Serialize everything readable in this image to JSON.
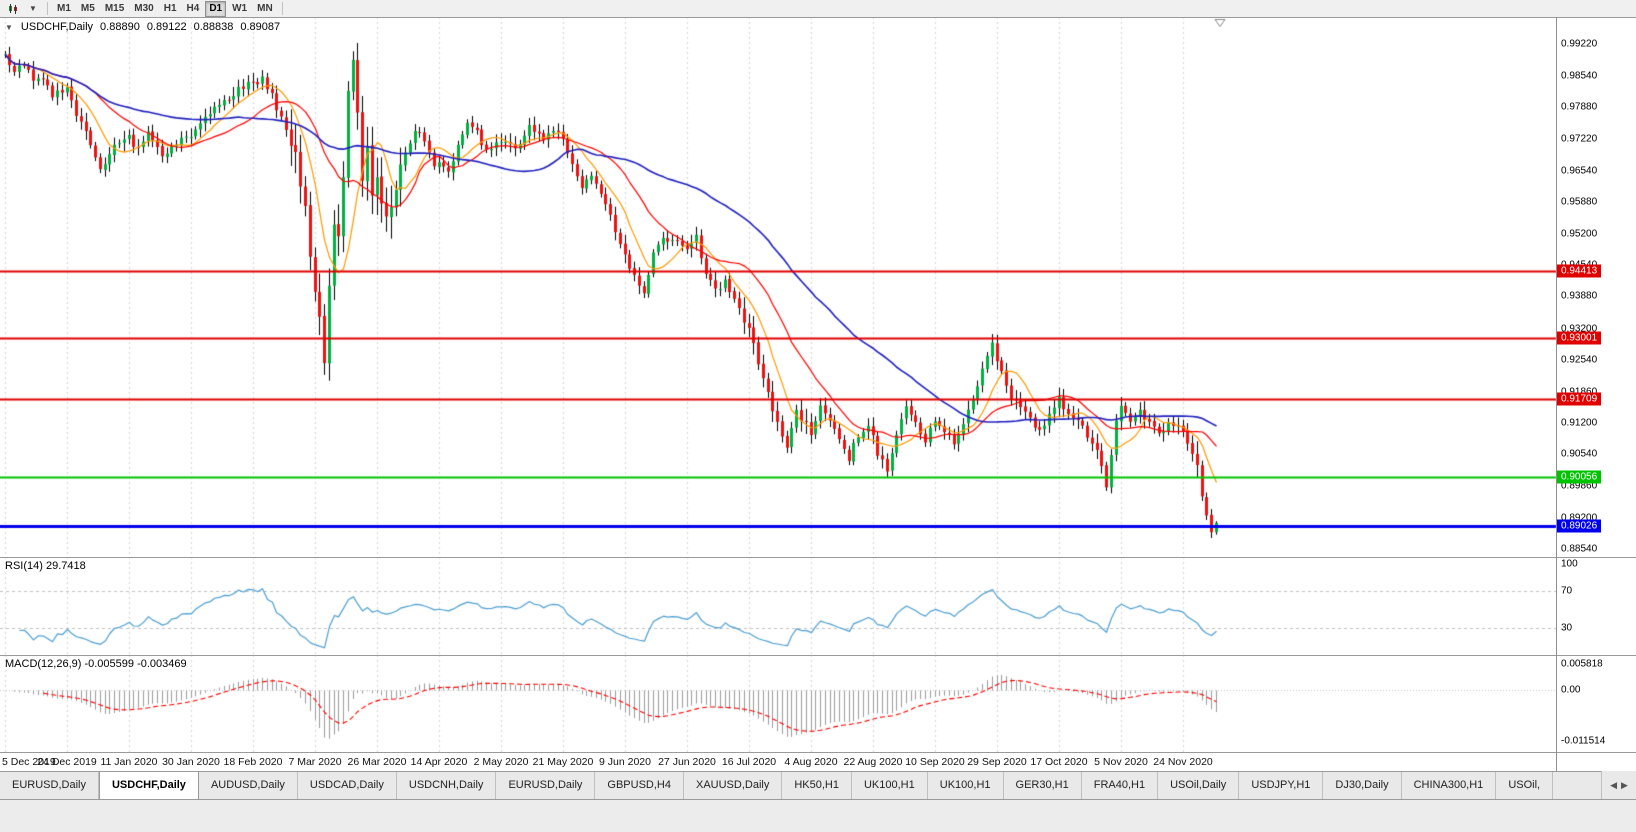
{
  "toolbar": {
    "timeframes": [
      "M1",
      "M5",
      "M15",
      "M30",
      "H1",
      "H4",
      "D1",
      "W1",
      "MN"
    ],
    "active_timeframe": "D1"
  },
  "chart": {
    "symbol_period": "USDCHF,Daily",
    "ohlc": {
      "open": "0.88890",
      "high": "0.89122",
      "low": "0.88838",
      "close": "0.89087"
    },
    "collapse_arrow": "▼"
  },
  "price_axis": {
    "ticks": [
      "0.99220",
      "0.98540",
      "0.97880",
      "0.97220",
      "0.96540",
      "0.95880",
      "0.95200",
      "0.94540",
      "0.93880",
      "0.93200",
      "0.92540",
      "0.91860",
      "0.91200",
      "0.90540",
      "0.89860",
      "0.89200",
      "0.88540"
    ]
  },
  "date_axis": {
    "labels": [
      "5 Dec 2019",
      "24 Dec 2019",
      "11 Jan 2020",
      "30 Jan 2020",
      "18 Feb 2020",
      "7 Mar 2020",
      "26 Mar 2020",
      "14 Apr 2020",
      "2 May 2020",
      "21 May 2020",
      "9 Jun 2020",
      "27 Jun 2020",
      "16 Jul 2020",
      "4 Aug 2020",
      "22 Aug 2020",
      "10 Sep 2020",
      "29 Sep 2020",
      "17 Oct 2020",
      "5 Nov 2020",
      "24 Nov 2020"
    ]
  },
  "indicators": {
    "rsi": {
      "label": "RSI(14) 29.7418",
      "axis_labels": [
        "100",
        "70",
        "30"
      ],
      "axis_values": [
        100,
        70,
        30
      ],
      "dashed_levels": [
        70,
        30
      ]
    },
    "macd": {
      "label": "MACD(12,26,9) -0.005599 -0.003469",
      "axis_labels": [
        "0.005818",
        "0.00",
        "-0.011514"
      ],
      "axis_values": [
        0.005818,
        0.0,
        -0.011514
      ]
    }
  },
  "tabs": {
    "items": [
      "EURUSD,Daily",
      "USDCHF,Daily",
      "AUDUSD,Daily",
      "USDCAD,Daily",
      "USDCNH,Daily",
      "EURUSD,Daily",
      "GBPUSD,H4",
      "XAUUSD,Daily",
      "HK50,H1",
      "UK100,H1",
      "UK100,H1",
      "GER30,H1",
      "FRA40,H1",
      "USOil,Daily",
      "USDJPY,H1",
      "DJ30,Daily",
      "CHINA300,H1",
      "USOil,"
    ],
    "active_index": 1,
    "scroll_left": "◀",
    "scroll_right": "▶"
  },
  "chart_data": {
    "type": "candlestick",
    "symbol": "USDCHF",
    "timeframe": "Daily",
    "num_candles": 255,
    "last_candle": {
      "open": 0.8889,
      "high": 0.89122,
      "low": 0.88838,
      "close": 0.89087
    },
    "y_axis_range": [
      0.88365,
      0.99795
    ],
    "close_anchors": [
      [
        0,
        0.99
      ],
      [
        2,
        0.9858
      ],
      [
        4,
        0.9878
      ],
      [
        6,
        0.985
      ],
      [
        8,
        0.9842
      ],
      [
        10,
        0.9812
      ],
      [
        13,
        0.9826
      ],
      [
        15,
        0.9778
      ],
      [
        17,
        0.9742
      ],
      [
        20,
        0.9663
      ],
      [
        22,
        0.969
      ],
      [
        24,
        0.9714
      ],
      [
        26,
        0.9722
      ],
      [
        28,
        0.97
      ],
      [
        30,
        0.9734
      ],
      [
        33,
        0.9682
      ],
      [
        36,
        0.9712
      ],
      [
        39,
        0.9731
      ],
      [
        42,
        0.9762
      ],
      [
        45,
        0.979
      ],
      [
        48,
        0.9818
      ],
      [
        51,
        0.984
      ],
      [
        54,
        0.9849
      ],
      [
        56,
        0.9812
      ],
      [
        58,
        0.9768
      ],
      [
        60,
        0.9722
      ],
      [
        62,
        0.9642
      ],
      [
        64,
        0.948
      ],
      [
        66,
        0.9332
      ],
      [
        67,
        0.9262
      ],
      [
        68,
        0.9422
      ],
      [
        69,
        0.956
      ],
      [
        70,
        0.9502
      ],
      [
        71,
        0.9642
      ],
      [
        72,
        0.9822
      ],
      [
        73,
        0.9898
      ],
      [
        74,
        0.9778
      ],
      [
        75,
        0.9652
      ],
      [
        76,
        0.9722
      ],
      [
        77,
        0.9592
      ],
      [
        78,
        0.964
      ],
      [
        80,
        0.9556
      ],
      [
        82,
        0.9612
      ],
      [
        84,
        0.969
      ],
      [
        86,
        0.9744
      ],
      [
        88,
        0.9722
      ],
      [
        90,
        0.9672
      ],
      [
        93,
        0.9646
      ],
      [
        95,
        0.9702
      ],
      [
        97,
        0.9756
      ],
      [
        99,
        0.9732
      ],
      [
        101,
        0.9698
      ],
      [
        104,
        0.9722
      ],
      [
        107,
        0.97
      ],
      [
        110,
        0.9748
      ],
      [
        113,
        0.9718
      ],
      [
        116,
        0.9738
      ],
      [
        119,
        0.9676
      ],
      [
        121,
        0.9618
      ],
      [
        123,
        0.9648
      ],
      [
        125,
        0.9598
      ],
      [
        127,
        0.9558
      ],
      [
        130,
        0.948
      ],
      [
        132,
        0.9426
      ],
      [
        134,
        0.9386
      ],
      [
        136,
        0.9476
      ],
      [
        138,
        0.952
      ],
      [
        141,
        0.9498
      ],
      [
        143,
        0.9482
      ],
      [
        145,
        0.9512
      ],
      [
        147,
        0.9442
      ],
      [
        149,
        0.9398
      ],
      [
        151,
        0.942
      ],
      [
        153,
        0.9378
      ],
      [
        156,
        0.9318
      ],
      [
        158,
        0.9248
      ],
      [
        160,
        0.9178
      ],
      [
        162,
        0.9128
      ],
      [
        164,
        0.9076
      ],
      [
        166,
        0.9148
      ],
      [
        168,
        0.9118
      ],
      [
        169,
        0.9098
      ],
      [
        171,
        0.9158
      ],
      [
        173,
        0.9128
      ],
      [
        175,
        0.9078
      ],
      [
        177,
        0.9048
      ],
      [
        179,
        0.9098
      ],
      [
        181,
        0.9122
      ],
      [
        183,
        0.9058
      ],
      [
        185,
        0.9018
      ],
      [
        187,
        0.9096
      ],
      [
        189,
        0.9148
      ],
      [
        191,
        0.9118
      ],
      [
        193,
        0.9082
      ],
      [
        195,
        0.9128
      ],
      [
        197,
        0.9098
      ],
      [
        199,
        0.9078
      ],
      [
        201,
        0.9118
      ],
      [
        203,
        0.9178
      ],
      [
        205,
        0.9228
      ],
      [
        207,
        0.9292
      ],
      [
        209,
        0.9224
      ],
      [
        211,
        0.9172
      ],
      [
        213,
        0.9148
      ],
      [
        215,
        0.9128
      ],
      [
        217,
        0.9098
      ],
      [
        219,
        0.9136
      ],
      [
        221,
        0.9168
      ],
      [
        223,
        0.9148
      ],
      [
        225,
        0.9128
      ],
      [
        227,
        0.9098
      ],
      [
        229,
        0.9058
      ],
      [
        231,
        0.8992
      ],
      [
        233,
        0.9118
      ],
      [
        234,
        0.9148
      ],
      [
        236,
        0.9122
      ],
      [
        238,
        0.9142
      ],
      [
        240,
        0.9118
      ],
      [
        242,
        0.9098
      ],
      [
        244,
        0.9122
      ],
      [
        246,
        0.9108
      ],
      [
        248,
        0.9085
      ],
      [
        250,
        0.903
      ],
      [
        251,
        0.8972
      ],
      [
        252,
        0.8925
      ],
      [
        253,
        0.8889
      ],
      [
        254,
        0.89087
      ]
    ],
    "noise": 0.0009,
    "seed": 20201204,
    "vol_zones": [
      [
        60,
        83,
        2.4
      ],
      [
        155,
        168,
        1.4
      ],
      [
        248,
        254,
        1.5
      ]
    ],
    "moving_averages": [
      {
        "period": 8,
        "color": "#ff9900"
      },
      {
        "period": 20,
        "color": "#ff0000"
      },
      {
        "period": 50,
        "color": "#2020c0"
      }
    ],
    "hlines": [
      {
        "price": 0.94413,
        "label": "0.94413",
        "color": "#e00000",
        "width": 2
      },
      {
        "price": 0.93001,
        "label": "0.93001",
        "color": "#e00000",
        "width": 2
      },
      {
        "price": 0.91709,
        "label": "0.91709",
        "color": "#e00000",
        "width": 2
      },
      {
        "price": 0.90056,
        "label": "0.90056",
        "color": "#00c300",
        "width": 2
      },
      {
        "price": 0.89026,
        "label": "0.89026",
        "color": "#0000ee",
        "width": 3
      }
    ],
    "rsi": {
      "period": 14,
      "current": "29.7418"
    },
    "macd": {
      "fast": 12,
      "slow": 26,
      "signal": 9,
      "current_main": "-0.005599",
      "current_signal": "-0.003469",
      "axis_max": 0.005818,
      "axis_min": -0.011514
    },
    "colors": {
      "up": "#00b140",
      "down": "#ee1111",
      "wick": "#000000",
      "grid": "#d8d8d8",
      "rsi_line": "#4e9fd4",
      "rsi_level": "#c2c2c2",
      "macd_hist": "#9b9b9b",
      "macd_signal": "#ff0000"
    }
  }
}
